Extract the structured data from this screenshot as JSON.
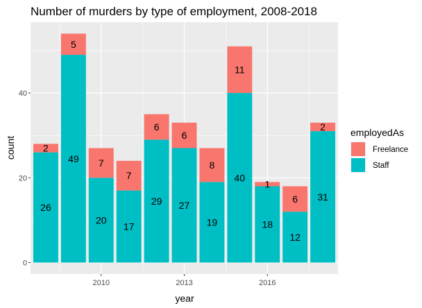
{
  "chart_data": {
    "type": "bar",
    "stacked": true,
    "title": "Number of murders by type of employment, 2008-2018",
    "xlabel": "year",
    "ylabel": "count",
    "x": [
      2008,
      2009,
      2010,
      2011,
      2012,
      2013,
      2014,
      2015,
      2016,
      2017,
      2018
    ],
    "xticks": [
      2010,
      2013,
      2016
    ],
    "yticks": [
      0,
      20,
      40
    ],
    "xlim": [
      2007.45,
      2018.55
    ],
    "ylim": [
      -2.7,
      56.7
    ],
    "grid": true,
    "background": "#ebebeb",
    "legend_placement": "right",
    "legend_title": "employedAs",
    "series": [
      {
        "name": "Freelance",
        "color": "#f8766d",
        "values": [
          2,
          5,
          7,
          7,
          6,
          6,
          8,
          11,
          1,
          6,
          2
        ]
      },
      {
        "name": "Staff",
        "color": "#00bfc4",
        "values": [
          26,
          49,
          20,
          17,
          29,
          27,
          19,
          40,
          18,
          12,
          31
        ]
      }
    ]
  }
}
